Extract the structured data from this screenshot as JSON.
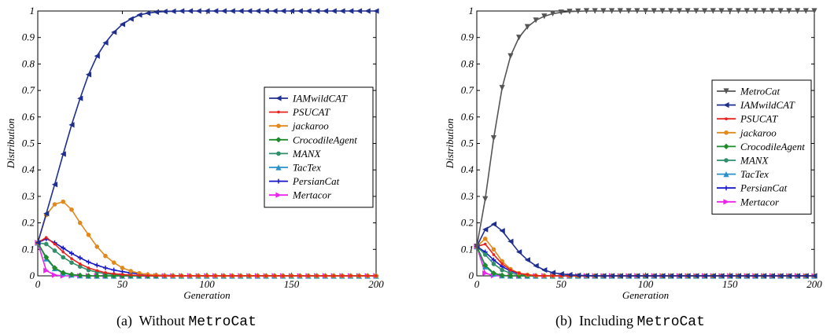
{
  "captions": [
    {
      "tag": "(a)",
      "text": "Without ",
      "mono": "MetroCat"
    },
    {
      "tag": "(b)",
      "text": "Including ",
      "mono": "MetroCat"
    }
  ],
  "chart_data": [
    {
      "type": "line",
      "xlabel": "Generation",
      "ylabel": "Distribution",
      "xlim": [
        0,
        200
      ],
      "ylim": [
        0,
        1
      ],
      "xticks": [
        0,
        50,
        100,
        150,
        200
      ],
      "yticks": [
        0,
        0.1,
        0.2,
        0.3,
        0.4,
        0.5,
        0.6,
        0.7,
        0.8,
        0.9,
        1
      ],
      "grid": false,
      "legend_position": "right",
      "x": [
        0,
        5,
        10,
        15,
        20,
        25,
        30,
        35,
        40,
        45,
        50,
        55,
        60,
        65,
        70,
        75,
        80,
        85,
        90,
        95,
        100,
        105,
        110,
        115,
        120,
        125,
        130,
        135,
        140,
        145,
        150,
        155,
        160,
        165,
        170,
        175,
        180,
        185,
        190,
        195,
        200
      ],
      "series": [
        {
          "name": "IAMwildCAT",
          "color": "#1f2f8f",
          "marker": "tri-left",
          "values": [
            0.125,
            0.235,
            0.345,
            0.46,
            0.57,
            0.67,
            0.76,
            0.83,
            0.88,
            0.92,
            0.95,
            0.97,
            0.985,
            0.992,
            0.996,
            0.998,
            0.999,
            1,
            1,
            1,
            1,
            1,
            1,
            1,
            1,
            1,
            1,
            1,
            1,
            1,
            1,
            1,
            1,
            1,
            1,
            1,
            1,
            1,
            1,
            1,
            1
          ]
        },
        {
          "name": "PSUCAT",
          "color": "#e8231e",
          "marker": "dot",
          "values": [
            0.125,
            0.145,
            0.12,
            0.09,
            0.065,
            0.045,
            0.03,
            0.02,
            0.012,
            0.008,
            0.005,
            0.003,
            0.002,
            0.001,
            0,
            0,
            0,
            0,
            0,
            0,
            0,
            0,
            0,
            0,
            0,
            0,
            0,
            0,
            0,
            0,
            0,
            0,
            0,
            0,
            0,
            0,
            0,
            0,
            0,
            0,
            0
          ]
        },
        {
          "name": "jackaroo",
          "color": "#e08a1e",
          "marker": "circle",
          "values": [
            0.125,
            0.23,
            0.27,
            0.28,
            0.25,
            0.2,
            0.155,
            0.11,
            0.075,
            0.05,
            0.03,
            0.018,
            0.01,
            0.005,
            0.003,
            0.001,
            0,
            0,
            0,
            0,
            0,
            0,
            0,
            0,
            0,
            0,
            0,
            0,
            0,
            0,
            0,
            0,
            0,
            0,
            0,
            0,
            0,
            0,
            0,
            0,
            0
          ]
        },
        {
          "name": "CrocodileAgent",
          "color": "#1e8a2a",
          "marker": "diamond",
          "values": [
            0.125,
            0.07,
            0.03,
            0.012,
            0.005,
            0.002,
            0,
            0,
            0,
            0,
            0,
            0,
            0,
            0,
            0,
            0,
            0,
            0,
            0,
            0,
            0,
            0,
            0,
            0,
            0,
            0,
            0,
            0,
            0,
            0,
            0,
            0,
            0,
            0,
            0,
            0,
            0,
            0,
            0,
            0,
            0
          ]
        },
        {
          "name": "MANX",
          "color": "#2f8f6a",
          "marker": "circle",
          "values": [
            0.125,
            0.12,
            0.095,
            0.07,
            0.05,
            0.035,
            0.022,
            0.014,
            0.008,
            0.005,
            0.003,
            0.001,
            0,
            0,
            0,
            0,
            0,
            0,
            0,
            0,
            0,
            0,
            0,
            0,
            0,
            0,
            0,
            0,
            0,
            0,
            0,
            0,
            0,
            0,
            0,
            0,
            0,
            0,
            0,
            0,
            0
          ]
        },
        {
          "name": "TacTex",
          "color": "#2a90c8",
          "marker": "tri-up",
          "values": [
            0.125,
            0.065,
            0.028,
            0.01,
            0.004,
            0.001,
            0,
            0,
            0,
            0,
            0,
            0,
            0,
            0,
            0,
            0,
            0,
            0,
            0,
            0,
            0,
            0,
            0,
            0,
            0,
            0,
            0,
            0,
            0,
            0,
            0,
            0,
            0,
            0,
            0,
            0,
            0,
            0,
            0,
            0,
            0
          ]
        },
        {
          "name": "PersianCat",
          "color": "#1414c8",
          "marker": "plus",
          "values": [
            0.125,
            0.14,
            0.125,
            0.105,
            0.085,
            0.068,
            0.052,
            0.04,
            0.03,
            0.022,
            0.016,
            0.011,
            0.008,
            0.005,
            0.003,
            0.002,
            0.001,
            0,
            0,
            0,
            0,
            0,
            0,
            0,
            0,
            0,
            0,
            0,
            0,
            0,
            0,
            0,
            0,
            0,
            0,
            0,
            0,
            0,
            0,
            0,
            0
          ]
        },
        {
          "name": "Mertacor",
          "color": "#ee22ee",
          "marker": "tri-right",
          "values": [
            0.125,
            0.02,
            0.003,
            0,
            0,
            0,
            0,
            0,
            0,
            0,
            0,
            0,
            0,
            0,
            0,
            0,
            0,
            0,
            0,
            0,
            0,
            0,
            0,
            0,
            0,
            0,
            0,
            0,
            0,
            0,
            0,
            0,
            0,
            0,
            0,
            0,
            0,
            0,
            0,
            0,
            0
          ]
        }
      ]
    },
    {
      "type": "line",
      "xlabel": "Generation",
      "ylabel": "Distribution",
      "xlim": [
        0,
        200
      ],
      "ylim": [
        0,
        1
      ],
      "xticks": [
        0,
        50,
        100,
        150,
        200
      ],
      "yticks": [
        0,
        0.1,
        0.2,
        0.3,
        0.4,
        0.5,
        0.6,
        0.7,
        0.8,
        0.9,
        1
      ],
      "grid": false,
      "legend_position": "right",
      "x": [
        0,
        5,
        10,
        15,
        20,
        25,
        30,
        35,
        40,
        45,
        50,
        55,
        60,
        65,
        70,
        75,
        80,
        85,
        90,
        95,
        100,
        105,
        110,
        115,
        120,
        125,
        130,
        135,
        140,
        145,
        150,
        155,
        160,
        165,
        170,
        175,
        180,
        185,
        190,
        195,
        200
      ],
      "series": [
        {
          "name": "MetroCat",
          "color": "#555555",
          "marker": "tri-down",
          "values": [
            0.111,
            0.29,
            0.52,
            0.71,
            0.83,
            0.9,
            0.94,
            0.965,
            0.98,
            0.99,
            0.995,
            0.998,
            0.999,
            1,
            1,
            1,
            1,
            1,
            1,
            1,
            1,
            1,
            1,
            1,
            1,
            1,
            1,
            1,
            1,
            1,
            1,
            1,
            1,
            1,
            1,
            1,
            1,
            1,
            1,
            1,
            1
          ]
        },
        {
          "name": "IAMwildCAT",
          "color": "#1f2f8f",
          "marker": "tri-left",
          "values": [
            0.111,
            0.175,
            0.195,
            0.17,
            0.13,
            0.09,
            0.06,
            0.038,
            0.022,
            0.012,
            0.007,
            0.004,
            0.002,
            0.001,
            0,
            0,
            0,
            0,
            0,
            0,
            0,
            0,
            0,
            0,
            0,
            0,
            0,
            0,
            0,
            0,
            0,
            0,
            0,
            0,
            0,
            0,
            0,
            0,
            0,
            0,
            0
          ]
        },
        {
          "name": "PSUCAT",
          "color": "#e8231e",
          "marker": "dot",
          "values": [
            0.111,
            0.12,
            0.08,
            0.045,
            0.022,
            0.01,
            0.004,
            0.001,
            0,
            0,
            0,
            0,
            0,
            0,
            0,
            0,
            0,
            0,
            0,
            0,
            0,
            0,
            0,
            0,
            0,
            0,
            0,
            0,
            0,
            0,
            0,
            0,
            0,
            0,
            0,
            0,
            0,
            0,
            0,
            0,
            0
          ]
        },
        {
          "name": "jackaroo",
          "color": "#e08a1e",
          "marker": "circle",
          "values": [
            0.111,
            0.14,
            0.1,
            0.055,
            0.025,
            0.01,
            0.004,
            0.001,
            0,
            0,
            0,
            0,
            0,
            0,
            0,
            0,
            0,
            0,
            0,
            0,
            0,
            0,
            0,
            0,
            0,
            0,
            0,
            0,
            0,
            0,
            0,
            0,
            0,
            0,
            0,
            0,
            0,
            0,
            0,
            0,
            0
          ]
        },
        {
          "name": "CrocodileAgent",
          "color": "#1e8a2a",
          "marker": "diamond",
          "values": [
            0.111,
            0.04,
            0.01,
            0.002,
            0,
            0,
            0,
            0,
            0,
            0,
            0,
            0,
            0,
            0,
            0,
            0,
            0,
            0,
            0,
            0,
            0,
            0,
            0,
            0,
            0,
            0,
            0,
            0,
            0,
            0,
            0,
            0,
            0,
            0,
            0,
            0,
            0,
            0,
            0,
            0,
            0
          ]
        },
        {
          "name": "MANX",
          "color": "#2f8f6a",
          "marker": "circle",
          "values": [
            0.111,
            0.08,
            0.045,
            0.022,
            0.01,
            0.004,
            0.001,
            0,
            0,
            0,
            0,
            0,
            0,
            0,
            0,
            0,
            0,
            0,
            0,
            0,
            0,
            0,
            0,
            0,
            0,
            0,
            0,
            0,
            0,
            0,
            0,
            0,
            0,
            0,
            0,
            0,
            0,
            0,
            0,
            0,
            0
          ]
        },
        {
          "name": "TacTex",
          "color": "#2a90c8",
          "marker": "tri-up",
          "values": [
            0.111,
            0.035,
            0.008,
            0.001,
            0,
            0,
            0,
            0,
            0,
            0,
            0,
            0,
            0,
            0,
            0,
            0,
            0,
            0,
            0,
            0,
            0,
            0,
            0,
            0,
            0,
            0,
            0,
            0,
            0,
            0,
            0,
            0,
            0,
            0,
            0,
            0,
            0,
            0,
            0,
            0,
            0
          ]
        },
        {
          "name": "PersianCat",
          "color": "#1414c8",
          "marker": "plus",
          "values": [
            0.111,
            0.09,
            0.06,
            0.035,
            0.018,
            0.008,
            0.003,
            0.001,
            0,
            0,
            0,
            0,
            0,
            0,
            0,
            0,
            0,
            0,
            0,
            0,
            0,
            0,
            0,
            0,
            0,
            0,
            0,
            0,
            0,
            0,
            0,
            0,
            0,
            0,
            0,
            0,
            0,
            0,
            0,
            0,
            0
          ]
        },
        {
          "name": "Mertacor",
          "color": "#ee22ee",
          "marker": "tri-right",
          "values": [
            0.111,
            0.01,
            0.001,
            0,
            0,
            0,
            0,
            0,
            0,
            0,
            0,
            0,
            0,
            0,
            0,
            0,
            0,
            0,
            0,
            0,
            0,
            0,
            0,
            0,
            0,
            0,
            0,
            0,
            0,
            0,
            0,
            0,
            0,
            0,
            0,
            0,
            0,
            0,
            0,
            0,
            0
          ]
        }
      ]
    }
  ]
}
